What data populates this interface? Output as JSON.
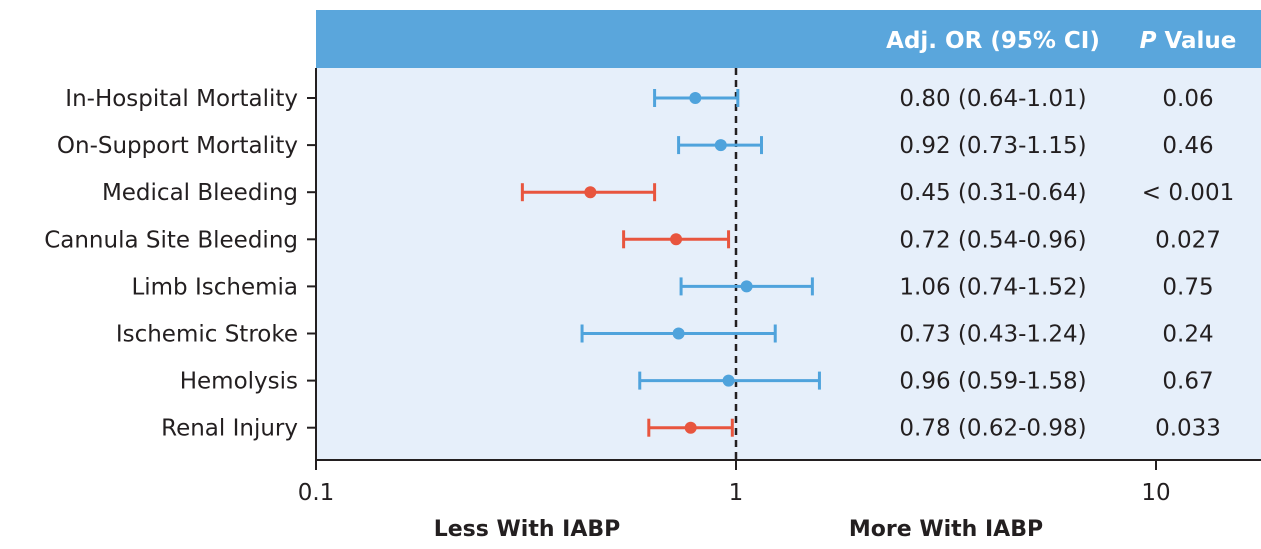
{
  "chart_data": {
    "type": "forest",
    "x_scale": "log",
    "xlim": [
      0.1,
      17.5
    ],
    "x_ticks": [
      {
        "value": 0.1,
        "label": "0.1"
      },
      {
        "value": 1,
        "label": "1"
      },
      {
        "value": 10,
        "label": "10"
      }
    ],
    "reference_line": 1,
    "header": {
      "or_col": "Adj. OR (95% CI)",
      "p_col_italic": "P",
      "p_col_rest": " Value"
    },
    "xlabel_left": "Less With IABP",
    "xlabel_right": "More With IABP",
    "colors": {
      "header_bg": "#5aa6dc",
      "panel_bg": "#e6effa",
      "nonsig": "#4fa3dc",
      "sig": "#e8553e",
      "axis": "#231f20"
    },
    "rows": [
      {
        "label": "In-Hospital Mortality",
        "or": 0.8,
        "lo": 0.64,
        "hi": 1.01,
        "or_text": "0.80 (0.64-1.01)",
        "p": "0.06",
        "significant": false
      },
      {
        "label": "On-Support Mortality",
        "or": 0.92,
        "lo": 0.73,
        "hi": 1.15,
        "or_text": "0.92 (0.73-1.15)",
        "p": "0.46",
        "significant": false
      },
      {
        "label": "Medical Bleeding",
        "or": 0.45,
        "lo": 0.31,
        "hi": 0.64,
        "or_text": "0.45 (0.31-0.64)",
        "p": "< 0.001",
        "significant": true
      },
      {
        "label": "Cannula Site Bleeding",
        "or": 0.72,
        "lo": 0.54,
        "hi": 0.96,
        "or_text": "0.72 (0.54-0.96)",
        "p": "0.027",
        "significant": true
      },
      {
        "label": "Limb Ischemia",
        "or": 1.06,
        "lo": 0.74,
        "hi": 1.52,
        "or_text": "1.06 (0.74-1.52)",
        "p": "0.75",
        "significant": false
      },
      {
        "label": "Ischemic Stroke",
        "or": 0.73,
        "lo": 0.43,
        "hi": 1.24,
        "or_text": "0.73 (0.43-1.24)",
        "p": "0.24",
        "significant": false
      },
      {
        "label": "Hemolysis",
        "or": 0.96,
        "lo": 0.59,
        "hi": 1.58,
        "or_text": "0.96 (0.59-1.58)",
        "p": "0.67",
        "significant": false
      },
      {
        "label": "Renal Injury",
        "or": 0.78,
        "lo": 0.62,
        "hi": 0.98,
        "or_text": "0.78 (0.62-0.98)",
        "p": "0.033",
        "significant": true
      }
    ]
  }
}
